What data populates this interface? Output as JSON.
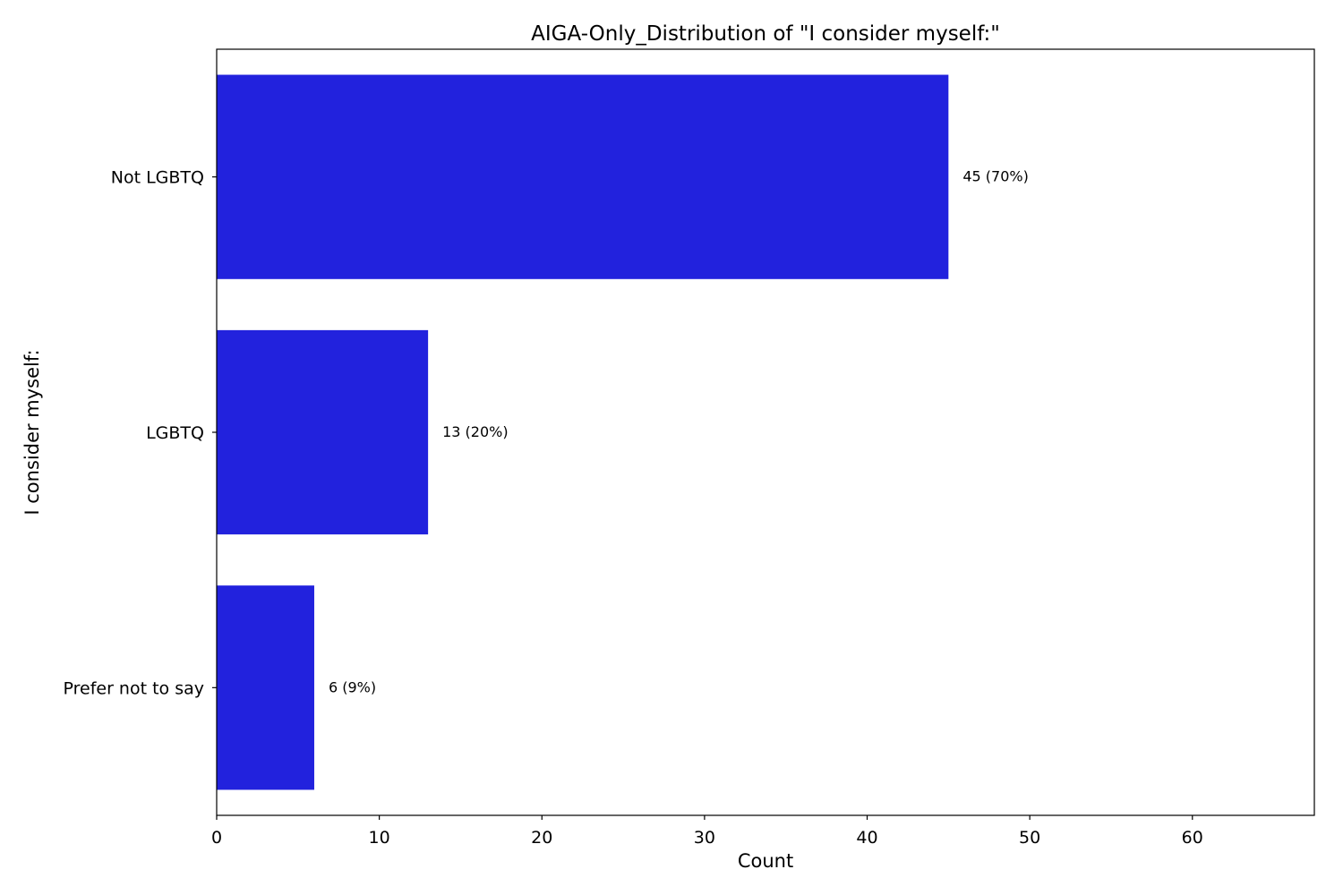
{
  "chart_data": {
    "type": "bar",
    "orientation": "horizontal",
    "title": "AIGA-Only_Distribution of \"I consider myself:\"",
    "xlabel": "Count",
    "ylabel": "I consider myself:",
    "categories": [
      "Not LGBTQ",
      "LGBTQ",
      "Prefer not to say"
    ],
    "values": [
      45,
      13,
      6
    ],
    "data_labels": [
      "45 (70%)",
      "13 (20%)",
      "6 (9%)"
    ],
    "xlim": [
      0,
      67.5
    ],
    "xticks": [
      0,
      10,
      20,
      30,
      40,
      50,
      60
    ],
    "bar_color": "#2222dd",
    "grid": false,
    "legend": "none"
  }
}
